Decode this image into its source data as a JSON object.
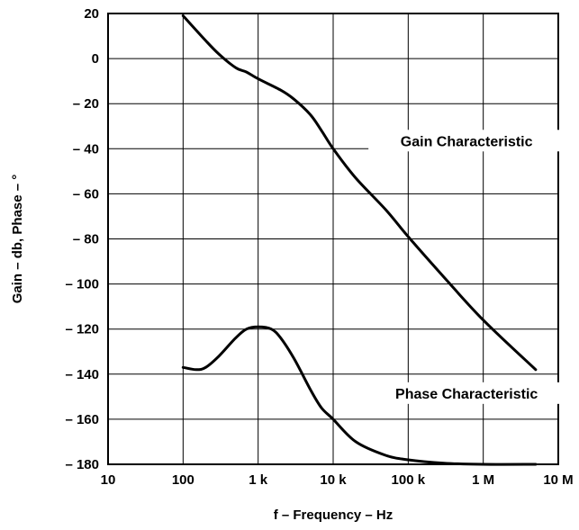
{
  "chart_data": {
    "type": "line",
    "title": "",
    "xlabel": "f – Frequency – Hz",
    "ylabel": "Gain – db, Phase – °",
    "x_scale": "log",
    "xlim": [
      10,
      10000000
    ],
    "ylim": [
      -180,
      20
    ],
    "grid": true,
    "x_ticks": [
      {
        "value": 10,
        "label": "10"
      },
      {
        "value": 100,
        "label": "100"
      },
      {
        "value": 1000,
        "label": "1 k"
      },
      {
        "value": 10000,
        "label": "10 k"
      },
      {
        "value": 100000,
        "label": "100 k"
      },
      {
        "value": 1000000,
        "label": "1 M"
      },
      {
        "value": 10000000,
        "label": "10 M"
      }
    ],
    "y_ticks": [
      {
        "value": 20,
        "label": "20"
      },
      {
        "value": 0,
        "label": "0"
      },
      {
        "value": -20,
        "label": "– 20"
      },
      {
        "value": -40,
        "label": "– 40"
      },
      {
        "value": -60,
        "label": "– 60"
      },
      {
        "value": -80,
        "label": "– 80"
      },
      {
        "value": -100,
        "label": "– 100"
      },
      {
        "value": -120,
        "label": "– 120"
      },
      {
        "value": -140,
        "label": "– 140"
      },
      {
        "value": -160,
        "label": "– 160"
      },
      {
        "value": -180,
        "label": "– 180"
      }
    ],
    "series": [
      {
        "name": "Gain Characteristic",
        "x": [
          100,
          200,
          300,
          500,
          700,
          1000,
          2000,
          3000,
          5000,
          7000,
          10000,
          20000,
          50000,
          100000,
          300000,
          1000000,
          5000000
        ],
        "y": [
          19,
          8,
          2,
          -4,
          -6,
          -9,
          -14,
          -18,
          -25,
          -32,
          -40,
          -53,
          -67,
          -79,
          -97,
          -116,
          -138
        ]
      },
      {
        "name": "Phase Characteristic",
        "x": [
          100,
          150,
          200,
          300,
          500,
          700,
          1000,
          1500,
          2000,
          3000,
          5000,
          7000,
          10000,
          20000,
          50000,
          100000,
          300000,
          1000000,
          5000000
        ],
        "y": [
          -137,
          -138,
          -137,
          -132,
          -124,
          -120,
          -119,
          -120,
          -124,
          -133,
          -147,
          -155,
          -160,
          -170,
          -176,
          -178,
          -179.5,
          -180,
          -180
        ]
      }
    ],
    "annotations": [
      {
        "text": "Gain Characteristic",
        "x": 600000,
        "y": -38
      },
      {
        "text": "Phase Characteristic",
        "x": 600000,
        "y": -150
      }
    ]
  }
}
